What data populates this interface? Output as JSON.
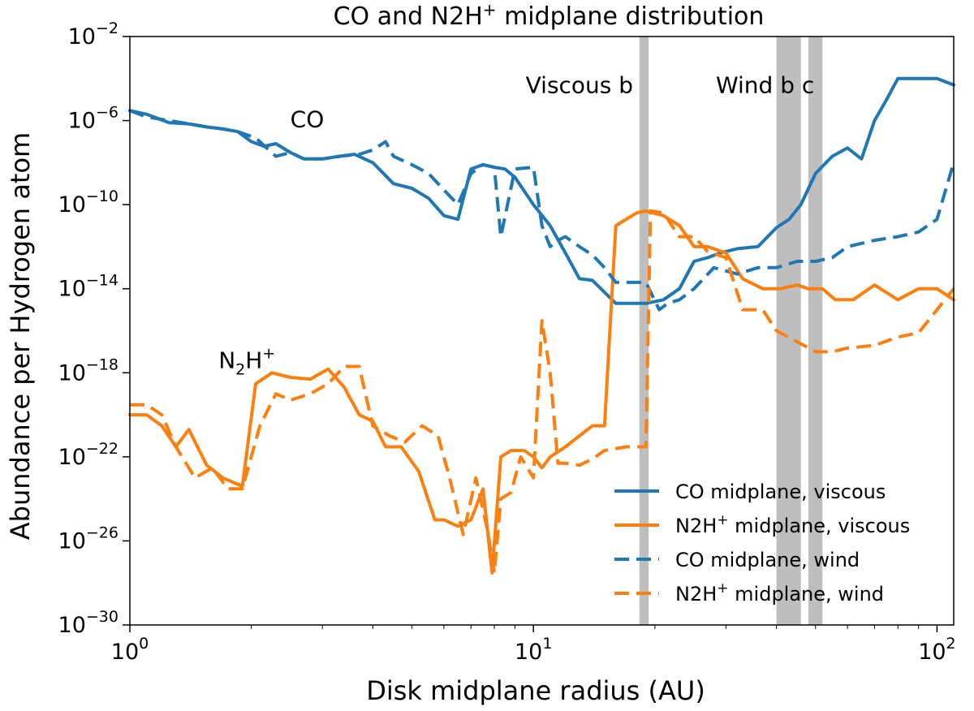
{
  "chart_data": {
    "type": "line",
    "title_base": "CO and N2H",
    "title_sup": "+",
    "title_rest": " midplane distribution",
    "xlabel": "Disk midplane radius (AU)",
    "ylabel": "Abundance per Hydrogen atom",
    "xscale": "log",
    "yscale": "log",
    "xlim": [
      1,
      110
    ],
    "ylim": [
      1e-30,
      0.01
    ],
    "xticks": [
      {
        "value": 1,
        "base": "10",
        "exp": "0"
      },
      {
        "value": 10,
        "base": "10",
        "exp": "1"
      },
      {
        "value": 100,
        "base": "10",
        "exp": "2"
      }
    ],
    "yticks": [
      {
        "value": 1e-30,
        "base": "10",
        "exp": "−30"
      },
      {
        "value": 1e-26,
        "base": "10",
        "exp": "−26"
      },
      {
        "value": 1e-22,
        "base": "10",
        "exp": "−22"
      },
      {
        "value": 1e-18,
        "base": "10",
        "exp": "−18"
      },
      {
        "value": 1e-14,
        "base": "10",
        "exp": "−14"
      },
      {
        "value": 1e-10,
        "base": "10",
        "exp": "−10"
      },
      {
        "value": 1e-06,
        "base": "10",
        "exp": "−6"
      },
      {
        "value": 0.01,
        "base": "10",
        "exp": "−2"
      }
    ],
    "grid": false,
    "legend_position": "lower-right",
    "colors": {
      "co": "#1f77b4",
      "n2h": "#ff7f0e",
      "band": "#bebebe"
    },
    "bands": [
      {
        "x0": 18.3,
        "x1": 19.3
      },
      {
        "x0": 40.0,
        "x1": 46.0
      },
      {
        "x0": 48.0,
        "x1": 52.0
      }
    ],
    "annotations": [
      {
        "id": "viscous-b",
        "text": "Viscous b",
        "x": 13.0,
        "y": 5e-05,
        "anchor": "middle"
      },
      {
        "id": "wind-b-c",
        "text": "Wind b c",
        "x": 37.5,
        "y": 5e-05,
        "anchor": "middle"
      },
      {
        "id": "co-label",
        "text": "CO",
        "x": 2.75,
        "y": 1.2e-06,
        "anchor": "middle"
      }
    ],
    "n2h_label": {
      "base": "N",
      "sub": "2",
      "mid": "H",
      "sup": "+",
      "x": 1.95,
      "y": 4e-18
    },
    "series": [
      {
        "name": "CO midplane, viscous",
        "legend_base": "CO midplane, viscous",
        "legend_sup": "",
        "legend_rest": "",
        "color": "#1f77b4",
        "dash": false,
        "x": [
          1,
          1.1,
          1.25,
          1.4,
          1.55,
          1.7,
          1.85,
          2.0,
          2.15,
          2.3,
          2.5,
          2.7,
          3.0,
          3.3,
          3.6,
          4.0,
          4.5,
          5.0,
          5.5,
          6.0,
          6.5,
          7.0,
          7.5,
          8.0,
          8.5,
          9.0,
          10.0,
          11.0,
          12.0,
          13.0,
          14.0,
          16.0,
          18.0,
          19.0,
          21.0,
          23.0,
          25.0,
          27.0,
          29.0,
          32.0,
          36.0,
          40.0,
          43.0,
          46.0,
          50.0,
          55.0,
          60.0,
          65.0,
          70.0,
          75.0,
          80.0,
          90.0,
          100.0,
          110.0
        ],
        "y": [
          3e-06,
          2e-06,
          8e-07,
          7e-07,
          5e-07,
          4e-07,
          3e-07,
          1e-07,
          6e-08,
          8e-08,
          3e-08,
          1.5e-08,
          1.5e-08,
          2e-08,
          2.5e-08,
          1e-08,
          1e-09,
          6e-10,
          2e-10,
          3e-11,
          2e-11,
          5e-09,
          8e-09,
          6e-09,
          5e-09,
          2e-09,
          1e-10,
          1e-11,
          5e-13,
          3e-14,
          2.5e-14,
          2e-15,
          2e-15,
          2e-15,
          3e-15,
          1e-14,
          2e-13,
          3e-13,
          5e-13,
          8e-13,
          1e-12,
          8e-12,
          2e-11,
          1e-10,
          3e-09,
          2e-08,
          5e-08,
          1.5e-08,
          1e-06,
          1e-05,
          0.0001,
          0.0001,
          0.0001,
          5e-05
        ]
      },
      {
        "name": "N2H+ midplane, viscous",
        "legend_base": "N2H",
        "legend_sup": "+",
        "legend_rest": " midplane, viscous",
        "color": "#ff7f0e",
        "dash": false,
        "x": [
          1,
          1.1,
          1.2,
          1.3,
          1.4,
          1.55,
          1.7,
          1.9,
          2.05,
          2.25,
          2.5,
          2.8,
          3.1,
          3.4,
          3.7,
          4.0,
          4.3,
          4.7,
          5.2,
          5.7,
          6.0,
          6.5,
          7.0,
          7.5,
          7.9,
          8.3,
          8.8,
          9.5,
          10.0,
          10.5,
          11.0,
          12.0,
          13.0,
          14.0,
          15.0,
          16.0,
          18.0,
          19.0,
          21.0,
          23.0,
          25.0,
          27.0,
          30.0,
          33.0,
          37.0,
          41.0,
          45.0,
          48.0,
          52.0,
          56.0,
          62.0,
          70.0,
          80.0,
          90.0,
          100.0,
          110.0
        ],
        "y": [
          1e-20,
          1e-20,
          3e-21,
          3e-22,
          2e-21,
          4e-23,
          1e-23,
          4e-24,
          3e-19,
          1e-18,
          6e-19,
          5e-19,
          1.5e-18,
          2e-19,
          1e-20,
          5e-21,
          3e-22,
          3e-22,
          2e-23,
          1e-25,
          1e-25,
          5e-26,
          1e-25,
          3e-24,
          3e-28,
          1e-22,
          2e-22,
          2e-22,
          1e-22,
          3e-23,
          1e-22,
          3e-22,
          1e-21,
          3e-21,
          3e-21,
          1e-11,
          4e-11,
          5e-11,
          3e-11,
          1e-11,
          1e-12,
          1e-12,
          5e-13,
          3e-14,
          1e-14,
          1e-14,
          1.5e-14,
          1e-14,
          1e-14,
          3e-15,
          3e-15,
          1.5e-14,
          3e-15,
          1e-14,
          1e-14,
          3e-15
        ]
      },
      {
        "name": "CO midplane, wind",
        "legend_base": "CO midplane, wind",
        "legend_sup": "",
        "legend_rest": "",
        "color": "#1f77b4",
        "dash": true,
        "x": [
          1,
          1.1,
          1.25,
          1.4,
          1.55,
          1.7,
          1.85,
          2.05,
          2.3,
          2.5,
          2.7,
          3.0,
          3.3,
          3.7,
          4.0,
          4.3,
          4.5,
          5.0,
          5.5,
          6.0,
          6.5,
          7.0,
          7.5,
          8.0,
          8.3,
          9.0,
          10.0,
          10.5,
          11.0,
          11.5,
          12.0,
          13.0,
          14.0,
          15.0,
          16.0,
          17.0,
          19.0,
          20.5,
          21.5,
          23.0,
          25.0,
          28.0,
          32.0,
          36.0,
          40.0,
          45.0,
          50.0,
          55.0,
          60.0,
          70.0,
          80.0,
          90.0,
          100.0,
          110.0
        ],
        "y": [
          3e-06,
          1.5e-06,
          1e-06,
          7e-07,
          5e-07,
          4e-07,
          3e-07,
          1.5e-07,
          2e-08,
          3e-08,
          1.5e-08,
          1.5e-08,
          2e-08,
          2.5e-08,
          4e-08,
          1e-07,
          2e-08,
          8e-09,
          3e-09,
          5e-10,
          1e-10,
          3e-09,
          8e-09,
          6e-09,
          3e-12,
          5e-09,
          6e-09,
          1e-11,
          1e-12,
          2e-12,
          3e-12,
          1e-12,
          4e-13,
          1e-13,
          2e-14,
          2e-14,
          2e-14,
          1e-15,
          2e-15,
          3e-15,
          1e-14,
          1e-13,
          5e-14,
          1e-13,
          1e-13,
          2e-13,
          2e-13,
          3e-13,
          1e-12,
          2e-12,
          3e-12,
          5e-12,
          2e-11,
          1e-08
        ]
      },
      {
        "name": "N2H+ midplane, wind",
        "legend_base": "N2H",
        "legend_sup": "+",
        "legend_rest": " midplane, wind",
        "color": "#ff7f0e",
        "dash": true,
        "x": [
          1,
          1.1,
          1.2,
          1.3,
          1.45,
          1.6,
          1.75,
          1.9,
          2.1,
          2.3,
          2.5,
          2.8,
          3.1,
          3.4,
          3.7,
          4.0,
          4.4,
          4.8,
          5.3,
          5.8,
          6.2,
          6.7,
          7.2,
          7.7,
          8.0,
          8.3,
          8.8,
          9.3,
          10.0,
          10.5,
          11.0,
          11.5,
          12.0,
          13.0,
          14.0,
          15.0,
          17.0,
          19.0,
          19.5,
          21.0,
          23.0,
          25.0,
          27.0,
          30.0,
          33.0,
          37.0,
          40.0,
          45.0,
          50.0,
          55.0,
          60.0,
          70.0,
          80.0,
          90.0,
          100.0,
          110.0
        ],
        "y": [
          3e-20,
          3e-20,
          1e-20,
          3e-22,
          1e-23,
          3e-23,
          3e-24,
          3e-24,
          3e-21,
          1e-19,
          5e-20,
          1e-19,
          3e-19,
          2e-18,
          2e-18,
          3e-21,
          1e-21,
          5e-22,
          3e-21,
          1e-21,
          1e-23,
          2e-26,
          1e-23,
          3e-26,
          3e-28,
          1e-24,
          2e-24,
          1e-22,
          1e-23,
          3e-16,
          1e-18,
          5e-23,
          5e-23,
          4e-23,
          8e-23,
          2e-22,
          3e-22,
          3e-22,
          5e-11,
          4e-11,
          3e-12,
          3e-12,
          6e-13,
          3e-13,
          1e-15,
          1e-15,
          1e-16,
          3e-17,
          1e-17,
          1e-17,
          1.5e-17,
          2e-17,
          5e-17,
          8e-17,
          1e-15,
          1e-14
        ]
      }
    ]
  }
}
